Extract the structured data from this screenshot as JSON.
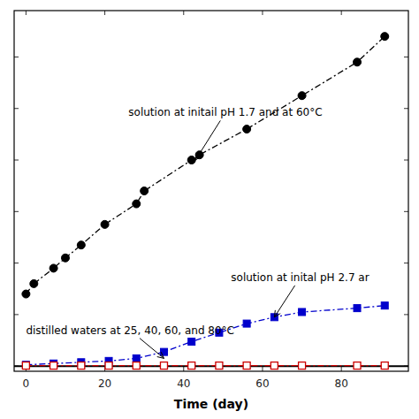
{
  "chart_data": {
    "type": "line",
    "title": "",
    "xlabel": "Time (day)",
    "xlim": [
      -3,
      97
    ],
    "ylim": [
      -0.02,
      1.38
    ],
    "xticks": [
      0,
      20,
      40,
      60,
      80
    ],
    "yticks": [
      0,
      0.2,
      0.4,
      0.6,
      0.8,
      1.0,
      1.2
    ],
    "tick_labels": "x",
    "grid": false,
    "series": [
      {
        "color": "#000000",
        "marker": "circle",
        "line_style": "dashdot",
        "x": [
          0,
          2,
          7,
          10,
          14,
          20,
          28,
          30,
          42,
          44,
          56,
          70,
          84,
          91
        ],
        "values": [
          0.28,
          0.32,
          0.38,
          0.42,
          0.47,
          0.55,
          0.63,
          0.68,
          0.8,
          0.82,
          0.92,
          1.05,
          1.18,
          1.28
        ]
      },
      {
        "color": "#0000cc",
        "marker": "square",
        "line_style": "dashdot",
        "x": [
          0,
          7,
          14,
          21,
          28,
          35,
          42,
          49,
          56,
          63,
          70,
          84,
          91
        ],
        "values": [
          0.005,
          0.01,
          0.015,
          0.02,
          0.03,
          0.055,
          0.095,
          0.13,
          0.165,
          0.19,
          0.21,
          0.225,
          0.235
        ]
      },
      {
        "color": "#cc0000",
        "marker": "open-square",
        "line_style": "dashdot",
        "x": [
          0,
          7,
          14,
          21,
          28,
          35,
          42,
          49,
          56,
          63,
          70,
          84,
          91
        ],
        "values": [
          0.002,
          0.002,
          0.002,
          0.002,
          0.002,
          0.002,
          0.002,
          0.002,
          0.002,
          0.002,
          0.002,
          0.002,
          0.002
        ]
      }
    ],
    "annotations": [
      {
        "text": "solution at initail pH 1.7 and at 60°C",
        "x": 43,
        "y": 0.8,
        "text_x": 26,
        "text_y": 0.96
      },
      {
        "text": "solution at inital pH 2.7 ar",
        "x": 63,
        "y": 0.19,
        "text_x": 52,
        "text_y": 0.32
      },
      {
        "text": "distilled waters at 25, 40, 60, and 80°C",
        "x": 35,
        "y": 0.03,
        "text_x": 0,
        "text_y": 0.115
      }
    ]
  }
}
